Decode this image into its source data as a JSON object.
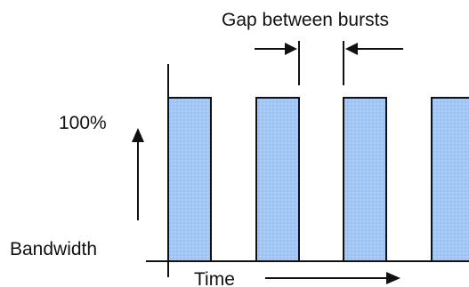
{
  "labels": {
    "gap": "Gap between bursts",
    "level": "100%",
    "bandwidth": "Bandwidth",
    "time": "Time"
  },
  "chart_data": {
    "type": "bar",
    "burst_count": 4,
    "burst_level_percent": 100,
    "colors": {
      "burst_fill": "#a3c7f5",
      "burst_stroke": "#111111",
      "axis": "#111111"
    }
  }
}
